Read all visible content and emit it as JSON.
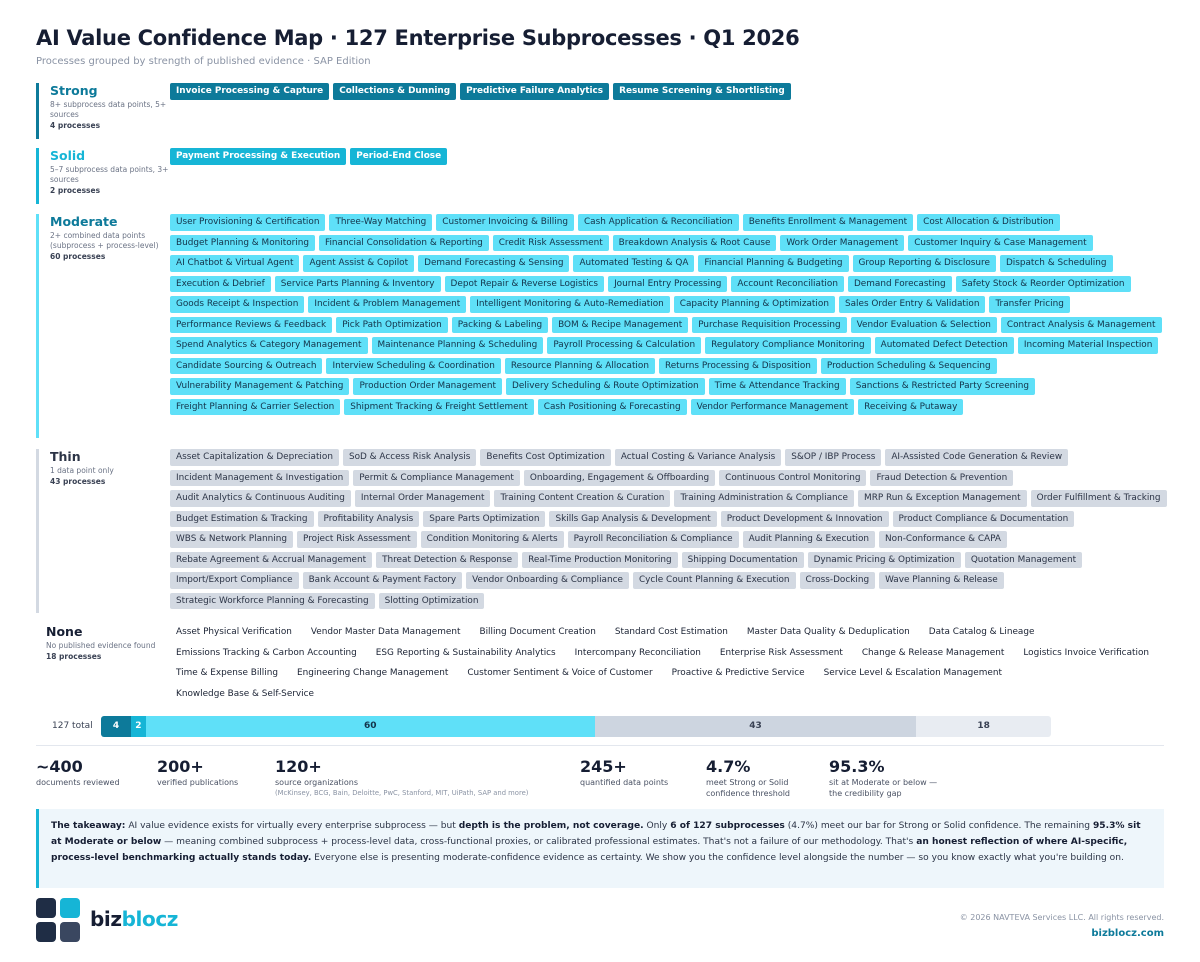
{
  "title": "AI Value Confidence Map · 127 Enterprise Subprocesses · Q1 2026",
  "subtitle": "Processes grouped by strength of published evidence · SAP Edition",
  "colors": {
    "strong": "#0d7a9a",
    "solid": "#16b5d6",
    "moderate": "#5fe0f8",
    "thin": "#d3d9e2",
    "none": "#e8ecf2",
    "accent": "#16b5d6",
    "dark": "#161e33"
  },
  "tiers": {
    "strong": {
      "name": "Strong",
      "desc": "8+ subprocess data points, 5+ sources",
      "count": "4 processes",
      "items": [
        "Invoice Processing & Capture",
        "Collections & Dunning",
        "Predictive Failure Analytics",
        "Resume Screening & Shortlisting"
      ]
    },
    "solid": {
      "name": "Solid",
      "desc": "5–7 subprocess data points, 3+ sources",
      "count": "2 processes",
      "items": [
        "Payment Processing & Execution",
        "Period-End Close"
      ]
    },
    "moderate": {
      "name": "Moderate",
      "desc": "2+ combined data points (subprocess + process-level)",
      "count": "60 processes",
      "items": [
        "User Provisioning & Certification",
        "Three-Way Matching",
        "Customer Invoicing & Billing",
        "Cash Application & Reconciliation",
        "Benefits Enrollment & Management",
        "Cost Allocation & Distribution",
        "Budget Planning & Monitoring",
        "Financial Consolidation & Reporting",
        "Credit Risk Assessment",
        "Breakdown Analysis & Root Cause",
        "Work Order Management",
        "Customer Inquiry & Case Management",
        "AI Chatbot & Virtual Agent",
        "Agent Assist & Copilot",
        "Demand Forecasting & Sensing",
        "Automated Testing & QA",
        "Financial Planning & Budgeting",
        "Group Reporting & Disclosure",
        "Dispatch & Scheduling",
        "Execution & Debrief",
        "Service Parts Planning & Inventory",
        "Depot Repair & Reverse Logistics",
        "Journal Entry Processing",
        "Account Reconciliation",
        "Demand Forecasting",
        "Safety Stock & Reorder Optimization",
        "Goods Receipt & Inspection",
        "Incident & Problem Management",
        "Intelligent Monitoring & Auto-Remediation",
        "Capacity Planning & Optimization",
        "Sales Order Entry & Validation",
        "Transfer Pricing",
        "Performance Reviews & Feedback",
        "Pick Path Optimization",
        "Packing & Labeling",
        "BOM & Recipe Management",
        "Purchase Requisition Processing",
        "Vendor Evaluation & Selection",
        "Contract Analysis & Management",
        "Spend Analytics & Category Management",
        "Maintenance Planning & Scheduling",
        "Payroll Processing & Calculation",
        "Regulatory Compliance Monitoring",
        "Automated Defect Detection",
        "Incoming Material Inspection",
        "Candidate Sourcing & Outreach",
        "Interview Scheduling & Coordination",
        "Resource Planning & Allocation",
        "Returns Processing & Disposition",
        "Production Scheduling & Sequencing",
        "Vulnerability Management & Patching",
        "Production Order Management",
        "Delivery Scheduling & Route Optimization",
        "Time & Attendance Tracking",
        "Sanctions & Restricted Party Screening",
        "Freight Planning & Carrier Selection",
        "Shipment Tracking & Freight Settlement",
        "Cash Positioning & Forecasting",
        "Vendor Performance Management",
        "Receiving & Putaway"
      ]
    },
    "thin": {
      "name": "Thin",
      "desc": "1 data point only",
      "count": "43 processes",
      "items": [
        "Asset Capitalization & Depreciation",
        "SoD & Access Risk Analysis",
        "Benefits Cost Optimization",
        "Actual Costing & Variance Analysis",
        "S&OP / IBP Process",
        "AI-Assisted Code Generation & Review",
        "Incident Management & Investigation",
        "Permit & Compliance Management",
        "Onboarding, Engagement & Offboarding",
        "Continuous Control Monitoring",
        "Fraud Detection & Prevention",
        "Audit Analytics & Continuous Auditing",
        "Internal Order Management",
        "Training Content Creation & Curation",
        "Training Administration & Compliance",
        "MRP Run & Exception Management",
        "Order Fulfillment & Tracking",
        "Budget Estimation & Tracking",
        "Profitability Analysis",
        "Spare Parts Optimization",
        "Skills Gap Analysis & Development",
        "Product Development & Innovation",
        "Product Compliance & Documentation",
        "WBS & Network Planning",
        "Project Risk Assessment",
        "Condition Monitoring & Alerts",
        "Payroll Reconciliation & Compliance",
        "Audit Planning & Execution",
        "Non-Conformance & CAPA",
        "Rebate Agreement & Accrual Management",
        "Threat Detection & Response",
        "Real-Time Production Monitoring",
        "Shipping Documentation",
        "Dynamic Pricing & Optimization",
        "Quotation Management",
        "Import/Export Compliance",
        "Bank Account & Payment Factory",
        "Vendor Onboarding & Compliance",
        "Cycle Count Planning & Execution",
        "Cross-Docking",
        "Wave Planning & Release",
        "Strategic Workforce Planning & Forecasting",
        "Slotting Optimization"
      ]
    },
    "none": {
      "name": "None",
      "desc": "No published evidence found",
      "count": "18 processes",
      "items": [
        "Asset Physical Verification",
        "Vendor Master Data Management",
        "Billing Document Creation",
        "Standard Cost Estimation",
        "Master Data Quality & Deduplication",
        "Data Catalog & Lineage",
        "Emissions Tracking & Carbon Accounting",
        "ESG Reporting & Sustainability Analytics",
        "Intercompany Reconciliation",
        "Enterprise Risk Assessment",
        "Change & Release Management",
        "Logistics Invoice Verification",
        "Time & Expense Billing",
        "Engineering Change Management",
        "Customer Sentiment & Voice of Customer",
        "Proactive & Predictive Service",
        "Service Level & Escalation Management",
        "Knowledge Base & Self-Service"
      ]
    }
  },
  "distribution": {
    "label": "127 total",
    "total": 127,
    "segments": [
      {
        "key": "strong",
        "value": 4,
        "label": "4"
      },
      {
        "key": "solid",
        "value": 2,
        "label": "2"
      },
      {
        "key": "moderate",
        "value": 60,
        "label": "60"
      },
      {
        "key": "thin",
        "value": 43,
        "label": "43"
      },
      {
        "key": "none",
        "value": 18,
        "label": "18"
      }
    ]
  },
  "stats": [
    {
      "value": "~400",
      "label": "documents reviewed"
    },
    {
      "value": "200+",
      "label": "verified publications"
    },
    {
      "value": "120+",
      "label": "source organizations",
      "sub": "(McKinsey, BCG, Bain, Deloitte, PwC, Stanford, MIT, UiPath, SAP and more)"
    },
    {
      "value": "245+",
      "label": "quantified data points"
    },
    {
      "value": "4.7%",
      "label": "meet Strong or Solid",
      "label2": "confidence threshold"
    },
    {
      "value": "95.3%",
      "label": "sit at Moderate or below —",
      "label2": "the credibility gap"
    }
  ],
  "takeaway": {
    "lead": "The takeaway:",
    "t1": " AI value evidence exists for virtually every enterprise subprocess — but ",
    "b1": "depth is the problem, not coverage.",
    "t2": " Only ",
    "b2": "6 of 127 subprocesses",
    "t3": " (4.7%) meet our bar for Strong or Solid confidence. The remaining ",
    "b3": "95.3% sit at Moderate or below",
    "t4": " — meaning combined subprocess + process-level data, cross-functional proxies, or calibrated professional estimates. That's not a failure of our methodology. That's ",
    "b4": "an honest reflection of where AI-specific, process-level benchmarking actually stands today.",
    "t5": " Everyone else is presenting moderate-confidence evidence as certainty. We show you the confidence level alongside the number — so you know exactly what you're building on."
  },
  "footer": {
    "brand_a": "biz",
    "brand_b": "blocz",
    "copyright": "© 2026 NAVTEVA Services LLC. All rights reserved.",
    "site": "bizblocz.com"
  }
}
